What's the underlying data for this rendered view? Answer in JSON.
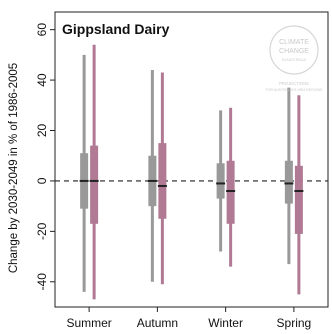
{
  "chart_data": {
    "type": "box",
    "title": "Gippsland Dairy",
    "ylabel": "Change by 2030-2049 in % of 1986-2005",
    "ylim": [
      -50,
      67
    ],
    "yticks": [
      -40,
      -20,
      0,
      20,
      40,
      60
    ],
    "reference_line": 0,
    "categories": [
      "Summer",
      "Autumn",
      "Winter",
      "Spring"
    ],
    "series": [
      {
        "color": "#999999",
        "boxes": [
          {
            "min": -44,
            "q1": -11,
            "median": 0,
            "q3": 11,
            "max": 50
          },
          {
            "min": -40,
            "q1": -10,
            "median": 0,
            "q3": 10,
            "max": 44
          },
          {
            "min": -28,
            "q1": -7,
            "median": -1,
            "q3": 7,
            "max": 28
          },
          {
            "min": -33,
            "q1": -9,
            "median": -1,
            "q3": 8,
            "max": 37
          }
        ]
      },
      {
        "color": "#b07a94",
        "boxes": [
          {
            "min": -47,
            "q1": -17,
            "median": 0,
            "q3": 14,
            "max": 54
          },
          {
            "min": -41,
            "q1": -15,
            "median": -2,
            "q3": 15,
            "max": 43
          },
          {
            "min": -34,
            "q1": -17,
            "median": -4,
            "q3": 8,
            "max": 29
          },
          {
            "min": -45,
            "q1": -21,
            "median": -4,
            "q3": 6,
            "max": 34
          }
        ]
      }
    ]
  },
  "logo": {
    "line1": "CLIMATE",
    "line2": "CHANGE",
    "line3": "IN AUSTRALIA",
    "caption1": "PROJECTIONS",
    "caption2": "FOR AUSTRALIA'S NRM REGIONS"
  }
}
